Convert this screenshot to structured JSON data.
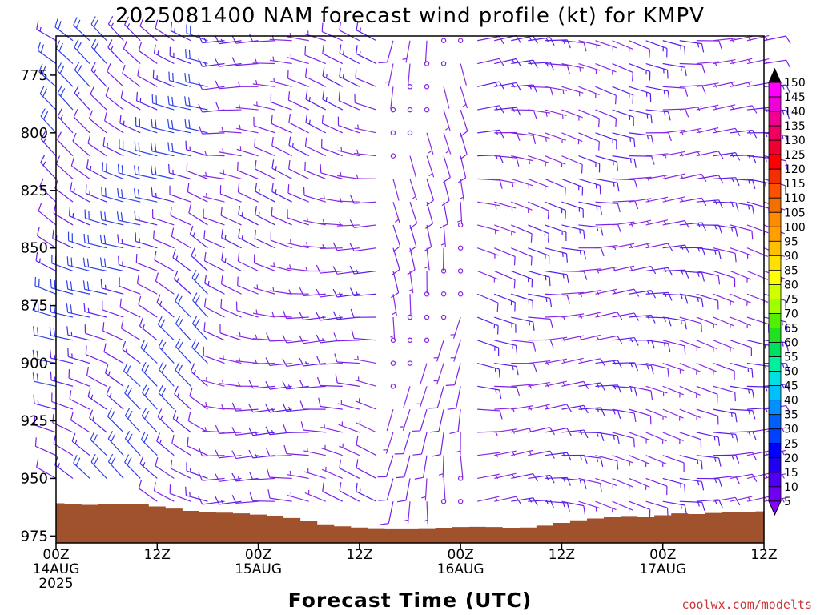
{
  "chart_data": {
    "type": "wind_barb_time_height",
    "title": "2025081400 NAM forecast wind profile (kt) for KMPV",
    "xlabel": "Forecast Time (UTC)",
    "ylabel": "",
    "x_range_hours": [
      0,
      84
    ],
    "x_ticks": [
      {
        "hour": 0,
        "lines": [
          "00Z",
          "14AUG",
          "2025"
        ]
      },
      {
        "hour": 12,
        "lines": [
          "12Z"
        ]
      },
      {
        "hour": 24,
        "lines": [
          "00Z",
          "15AUG"
        ]
      },
      {
        "hour": 36,
        "lines": [
          "12Z"
        ]
      },
      {
        "hour": 48,
        "lines": [
          "00Z",
          "16AUG"
        ]
      },
      {
        "hour": 60,
        "lines": [
          "12Z"
        ]
      },
      {
        "hour": 72,
        "lines": [
          "00Z",
          "17AUG"
        ]
      },
      {
        "hour": 84,
        "lines": [
          "12Z"
        ]
      }
    ],
    "y_range_hpa": [
      758,
      978
    ],
    "y_ticks": [
      775,
      800,
      825,
      850,
      875,
      900,
      925,
      950,
      975
    ],
    "levels_hpa": [
      760,
      770,
      780,
      790,
      800,
      810,
      820,
      830,
      840,
      850,
      860,
      870,
      880,
      890,
      900,
      910,
      920,
      930,
      940,
      950,
      960,
      970
    ],
    "time_step_hours": 2,
    "colorbar": {
      "ticks": [
        "150",
        "145",
        "140",
        "135",
        "130",
        "125",
        "120",
        "115",
        "110",
        "105",
        "100",
        "95",
        "90",
        "85",
        "80",
        "75",
        "70",
        "65",
        "60",
        "55",
        "50",
        "45",
        "40",
        "35",
        "30",
        "25",
        "20",
        "15",
        "10",
        "5"
      ],
      "colors": [
        "#ff00ff",
        "#f000d8",
        "#f00090",
        "#f00060",
        "#f00030",
        "#ff0000",
        "#f03000",
        "#ff5000",
        "#f07000",
        "#ff8c00",
        "#ffa000",
        "#ffc000",
        "#ffe000",
        "#ffff00",
        "#d0ff00",
        "#a0ff00",
        "#50f000",
        "#20e020",
        "#00e060",
        "#00f0a0",
        "#00e0e0",
        "#00c0ff",
        "#0090ff",
        "#0060ff",
        "#0040ff",
        "#0000ff",
        "#2000f0",
        "#5000f0",
        "#7000f0"
      ]
    },
    "terrain": {
      "color": "#a0522d",
      "surface_pressure_hpa": [
        960.8,
        961.3,
        961.5,
        961.2,
        961.0,
        961.3,
        962.2,
        963.1,
        964.1,
        964.6,
        964.9,
        965.2,
        965.7,
        966.2,
        967.2,
        968.6,
        969.9,
        970.8,
        971.3,
        971.6,
        971.7,
        971.7,
        971.6,
        971.4,
        971.1,
        971.0,
        971.1,
        971.4,
        971.3,
        970.5,
        969.3,
        968.2,
        967.4,
        966.8,
        966.3,
        966.6,
        966.0,
        965.2,
        965.5,
        965.0,
        964.8,
        964.6,
        964.3
      ]
    },
    "wind_regimes": [
      {
        "hours": [
          0,
          20
        ],
        "dir_deg": 300,
        "speed_kt_range": [
          12,
          24
        ]
      },
      {
        "hours": [
          20,
          40
        ],
        "dir_deg": 280,
        "speed_kt_range": [
          8,
          15
        ]
      },
      {
        "hours": [
          40,
          50
        ],
        "dir_deg": 180,
        "speed_kt_range": [
          0,
          12
        ]
      },
      {
        "hours": [
          50,
          84
        ],
        "dir_deg": 95,
        "speed_kt_range": [
          6,
          18
        ]
      }
    ],
    "credit": "coolwx.com/modelts"
  }
}
